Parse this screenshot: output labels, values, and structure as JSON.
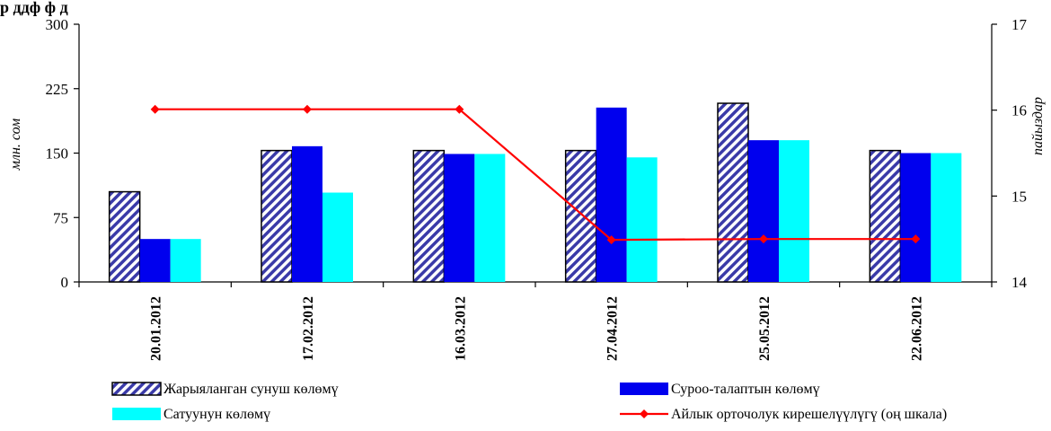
{
  "chart_data": {
    "type": "bar",
    "title": "",
    "title_fragment": "р ддф ф д",
    "categories": [
      "20.01.2012",
      "17.02.2012",
      "16.03.2012",
      "27.04.2012",
      "25.05.2012",
      "22.06.2012"
    ],
    "series": [
      {
        "name": "Жарыяланган сунуш көлөмү",
        "type": "bar",
        "axis": "left",
        "pattern": "diagonal-hatch",
        "color": "#3a3aa8",
        "values": [
          105,
          153,
          153,
          153,
          208,
          153
        ]
      },
      {
        "name": "Суроо-талаптын көлөмү",
        "type": "bar",
        "axis": "left",
        "color": "#0000ee",
        "values": [
          50,
          158,
          149,
          203,
          165,
          150
        ]
      },
      {
        "name": "Сатуунун көлөмү",
        "type": "bar",
        "axis": "left",
        "color": "#00ffff",
        "values": [
          50,
          104,
          149,
          145,
          165,
          150
        ]
      },
      {
        "name": "Айлык орточолук кирешелүүлүгү (оң шкала)",
        "type": "line",
        "axis": "right",
        "color": "#ff0000",
        "marker": "diamond",
        "values": [
          16.01,
          16.01,
          16.01,
          14.49,
          14.5,
          14.5
        ]
      }
    ],
    "y_left": {
      "label": "млн. сом",
      "min": 0,
      "max": 300,
      "ticks": [
        "0",
        "75",
        "150",
        "225",
        "300"
      ]
    },
    "y_right": {
      "label": "пайыздар",
      "min": 14,
      "max": 17,
      "ticks": [
        "14",
        "15",
        "16",
        "17"
      ]
    },
    "grid": false,
    "legend_position": "bottom"
  }
}
